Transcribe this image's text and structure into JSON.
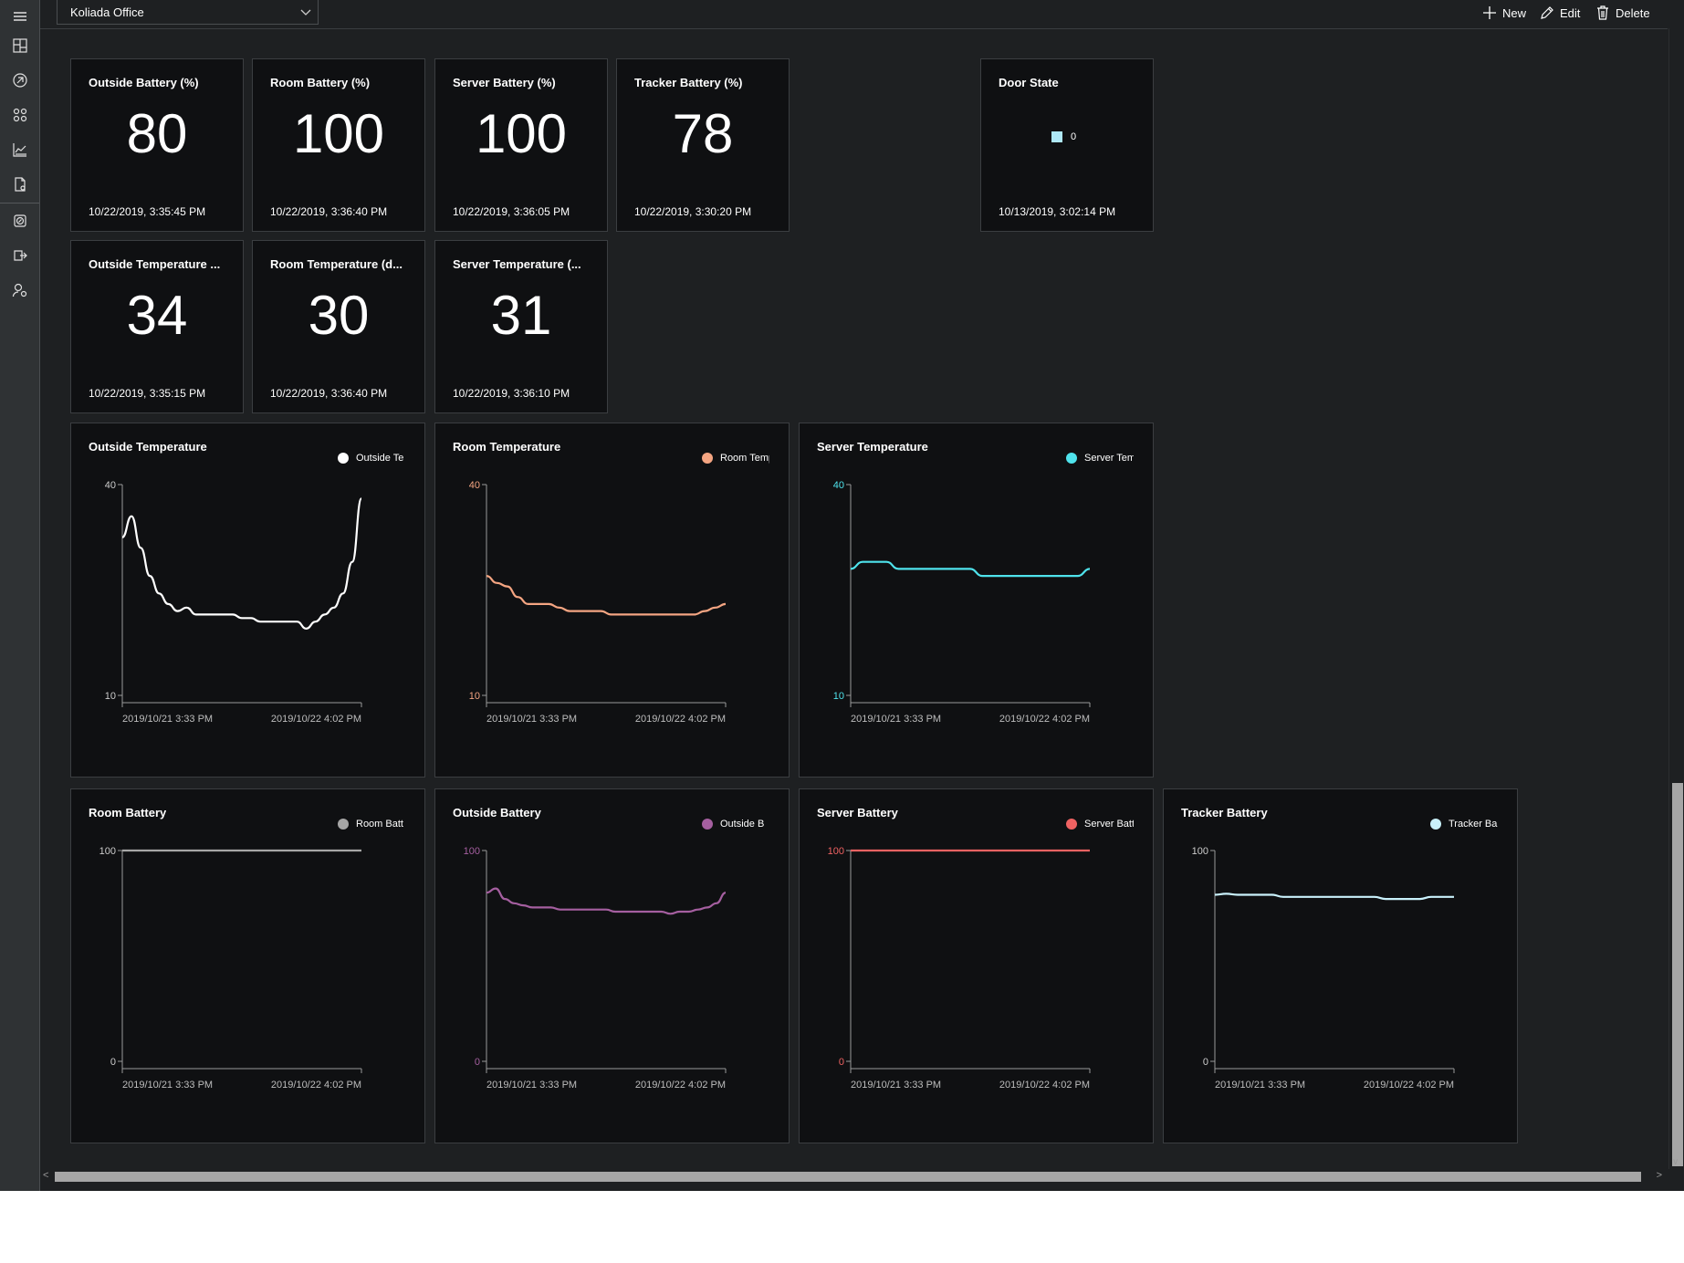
{
  "app": {
    "selected_app": "Koliada Office"
  },
  "toolbar": {
    "new_label": "New",
    "edit_label": "Edit",
    "delete_label": "Delete"
  },
  "sidebar": {
    "items": [
      {
        "icon": "menu-icon"
      },
      {
        "icon": "dashboard-icon"
      },
      {
        "icon": "device-explorer-icon"
      },
      {
        "icon": "device-groups-icon"
      },
      {
        "icon": "analytics-icon"
      },
      {
        "icon": "jobs-icon"
      },
      {
        "icon": "device-templates-icon"
      },
      {
        "icon": "data-export-icon"
      },
      {
        "icon": "administration-icon"
      }
    ]
  },
  "kpis": [
    {
      "title": "Outside Battery (%)",
      "value": "80",
      "time": "10/22/2019, 3:35:45 PM"
    },
    {
      "title": "Room Battery (%)",
      "value": "100",
      "time": "10/22/2019, 3:36:40 PM"
    },
    {
      "title": "Server Battery (%)",
      "value": "100",
      "time": "10/22/2019, 3:36:05 PM"
    },
    {
      "title": "Tracker Battery (%)",
      "value": "78",
      "time": "10/22/2019, 3:30:20 PM"
    },
    {
      "title": "Outside Temperature ...",
      "value": "34",
      "time": "10/22/2019, 3:35:15 PM"
    },
    {
      "title": "Room Temperature (d...",
      "value": "30",
      "time": "10/22/2019, 3:36:40 PM"
    },
    {
      "title": "Server Temperature (...",
      "value": "31",
      "time": "10/22/2019, 3:36:10 PM"
    }
  ],
  "door": {
    "title": "Door State",
    "value": "0",
    "time": "10/13/2019, 3:02:14 PM",
    "color": "#aee8f7"
  },
  "chart_data": [
    {
      "type": "line",
      "title": "Outside Temperature",
      "legend": "Outside Te",
      "color": "#ffffff",
      "ylim": [
        10,
        40
      ],
      "yticks": [
        "40",
        "10"
      ],
      "xticks": [
        "2019/10/21 3:33 PM",
        "2019/10/22 4:02 PM"
      ],
      "values": [
        32.5,
        35.5,
        31,
        27,
        24.5,
        23,
        22,
        22.5,
        21.5,
        21.5,
        21.5,
        21.5,
        21.5,
        21,
        21,
        20.5,
        20.5,
        20.5,
        20.5,
        20.5,
        19.5,
        20.5,
        21.5,
        22.5,
        24.5,
        29,
        38
      ]
    },
    {
      "type": "line",
      "title": "Room Temperature",
      "legend": "Room Temp",
      "color": "#f4a582",
      "ylim": [
        10,
        40
      ],
      "yticks": [
        "40",
        "10"
      ],
      "xticks": [
        "2019/10/21 3:33 PM",
        "2019/10/22 4:02 PM"
      ],
      "values": [
        27,
        26,
        25.5,
        24,
        23,
        23,
        23,
        22.5,
        22,
        22,
        22,
        22,
        21.5,
        21.5,
        21.5,
        21.5,
        21.5,
        21.5,
        21.5,
        21.5,
        21.5,
        22,
        22.5,
        23
      ]
    },
    {
      "type": "line",
      "title": "Server Temperature",
      "legend": "Server Temp",
      "color": "#4fe3ec",
      "ylim": [
        10,
        40
      ],
      "yticks": [
        "40",
        "10"
      ],
      "xticks": [
        "2019/10/21 3:33 PM",
        "2019/10/22 4:02 PM"
      ],
      "values": [
        28,
        29,
        29,
        29,
        28,
        28,
        28,
        28,
        28,
        28,
        28,
        27,
        27,
        27,
        27,
        27,
        27,
        27,
        27,
        27,
        28
      ]
    },
    {
      "type": "line",
      "title": "Room Battery",
      "legend": "Room Batt",
      "color": "#a6a6a6",
      "ylim": [
        0,
        100
      ],
      "yticks": [
        "100",
        "0"
      ],
      "xticks": [
        "2019/10/21 3:33 PM",
        "2019/10/22 4:02 PM"
      ],
      "values": [
        100,
        100
      ]
    },
    {
      "type": "line",
      "title": "Outside Battery",
      "legend": "Outside B",
      "color": "#a55fa0",
      "ylim": [
        0,
        100
      ],
      "yticks": [
        "100",
        "0"
      ],
      "xticks": [
        "2019/10/21 3:33 PM",
        "2019/10/22 4:02 PM"
      ],
      "values": [
        80,
        82,
        77,
        75,
        74,
        73,
        73,
        73,
        72,
        72,
        72,
        72,
        72,
        72,
        71,
        71,
        71,
        71,
        71,
        71,
        70,
        71,
        71,
        72,
        73,
        75,
        80
      ]
    },
    {
      "type": "line",
      "title": "Server Battery",
      "legend": "Server Batt",
      "color": "#ef6262",
      "ylim": [
        0,
        100
      ],
      "yticks": [
        "100",
        "0"
      ],
      "xticks": [
        "2019/10/21 3:33 PM",
        "2019/10/22 4:02 PM"
      ],
      "values": [
        100,
        100
      ]
    },
    {
      "type": "line",
      "title": "Tracker Battery",
      "legend": "Tracker Ba",
      "color": "#c9f1fb",
      "ylim": [
        0,
        100
      ],
      "yticks": [
        "100",
        "0"
      ],
      "xticks": [
        "2019/10/21 3:33 PM",
        "2019/10/22 4:02 PM"
      ],
      "values": [
        79,
        79.5,
        79,
        79,
        79,
        79,
        78,
        78,
        78,
        78,
        78,
        78,
        78,
        78,
        78,
        77,
        77,
        77,
        77,
        78,
        78,
        78
      ]
    }
  ]
}
